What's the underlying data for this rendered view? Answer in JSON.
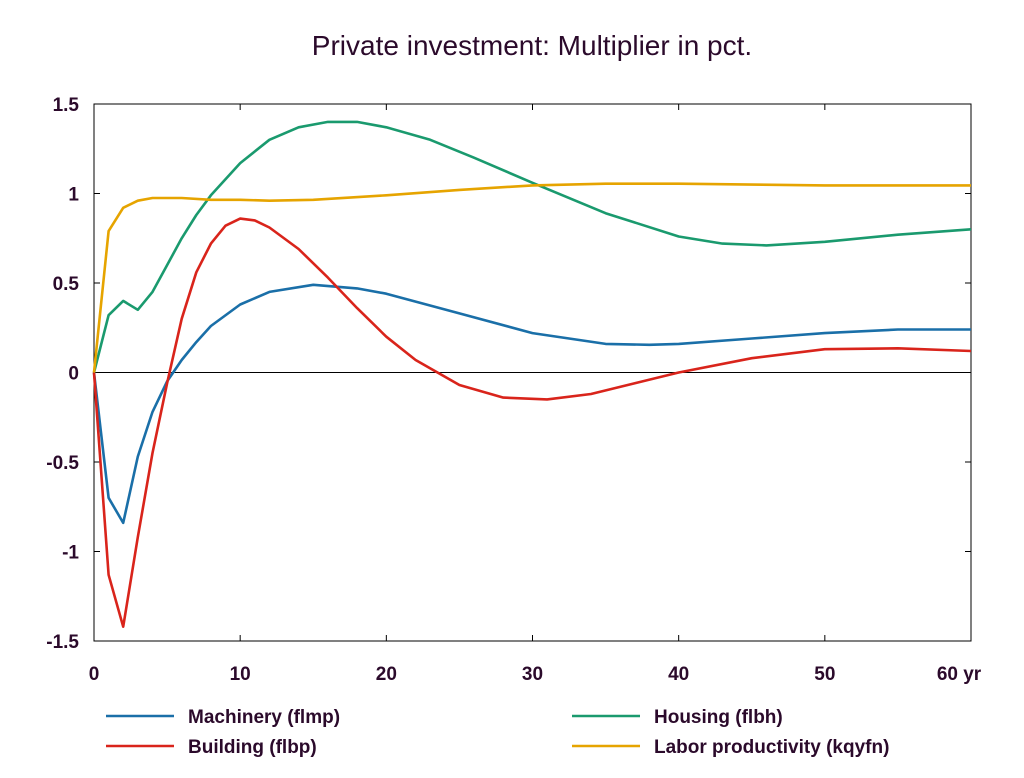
{
  "chart_data": {
    "type": "line",
    "title": "Private investment: Multiplier in pct.",
    "x_unit_label": "yr",
    "xlim": [
      0,
      60
    ],
    "ylim": [
      -1.5,
      1.5
    ],
    "x_ticks": [
      0,
      10,
      20,
      30,
      40,
      50,
      60
    ],
    "x_tick_labels": [
      "0",
      "10",
      "20",
      "30",
      "40",
      "50",
      "60 yr"
    ],
    "y_ticks": [
      1.5,
      1,
      0.5,
      0,
      -0.5,
      -1,
      -1.5
    ],
    "y_tick_labels": [
      "1.5",
      "1",
      "0.5",
      "0",
      "-0.5",
      "-1",
      "-1.5"
    ],
    "zero_line": true,
    "grid": false,
    "legend_position": "bottom",
    "series": [
      {
        "name": "Machinery (flmp)",
        "color": "#1a6fa8",
        "x": [
          0,
          1,
          2,
          3,
          4,
          5,
          6,
          7,
          8,
          10,
          12,
          15,
          18,
          20,
          25,
          30,
          35,
          38,
          40,
          45,
          50,
          55,
          60
        ],
        "y": [
          0,
          -0.7,
          -0.84,
          -0.47,
          -0.22,
          -0.05,
          0.07,
          0.17,
          0.26,
          0.38,
          0.45,
          0.49,
          0.47,
          0.44,
          0.33,
          0.22,
          0.16,
          0.155,
          0.16,
          0.19,
          0.22,
          0.24,
          0.24
        ]
      },
      {
        "name": "Building (flbp)",
        "color": "#d9241b",
        "x": [
          0,
          1,
          2,
          3,
          4,
          5,
          6,
          7,
          8,
          9,
          10,
          11,
          12,
          14,
          16,
          18,
          20,
          22,
          25,
          28,
          31,
          34,
          37,
          40,
          45,
          50,
          55,
          60
        ],
        "y": [
          0,
          -1.13,
          -1.42,
          -0.92,
          -0.45,
          -0.06,
          0.3,
          0.56,
          0.72,
          0.82,
          0.86,
          0.85,
          0.81,
          0.69,
          0.53,
          0.36,
          0.2,
          0.07,
          -0.07,
          -0.14,
          -0.15,
          -0.12,
          -0.06,
          0.0,
          0.08,
          0.13,
          0.135,
          0.12
        ]
      },
      {
        "name": "Housing (flbh)",
        "color": "#1a9a6e",
        "x": [
          0,
          1,
          2,
          3,
          4,
          5,
          6,
          7,
          8,
          10,
          12,
          14,
          16,
          18,
          20,
          23,
          26,
          30,
          35,
          40,
          43,
          46,
          50,
          55,
          60
        ],
        "y": [
          0,
          0.32,
          0.4,
          0.35,
          0.45,
          0.6,
          0.75,
          0.88,
          0.99,
          1.17,
          1.3,
          1.37,
          1.4,
          1.4,
          1.37,
          1.3,
          1.2,
          1.06,
          0.89,
          0.76,
          0.72,
          0.71,
          0.73,
          0.77,
          0.8
        ]
      },
      {
        "name": "Labor productivity (kqyfn)",
        "color": "#e6a400",
        "x": [
          0,
          1,
          2,
          3,
          4,
          5,
          6,
          8,
          10,
          12,
          15,
          20,
          25,
          30,
          35,
          40,
          45,
          50,
          55,
          60
        ],
        "y": [
          0,
          0.79,
          0.92,
          0.96,
          0.975,
          0.975,
          0.975,
          0.965,
          0.965,
          0.96,
          0.965,
          0.99,
          1.02,
          1.045,
          1.055,
          1.055,
          1.05,
          1.045,
          1.045,
          1.045
        ]
      }
    ]
  }
}
